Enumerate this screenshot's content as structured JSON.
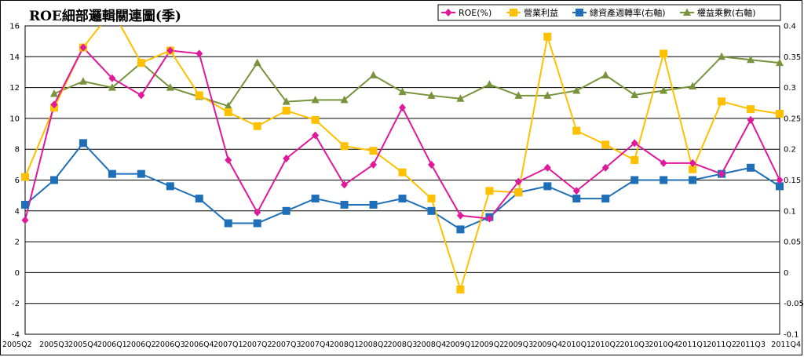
{
  "chart_data": {
    "type": "line",
    "title": "ROE細部邏輯關連圖(季)",
    "categories": [
      "2005Q2",
      "2005Q3",
      "2005Q4",
      "2006Q1",
      "2006Q2",
      "2006Q3",
      "2006Q4",
      "2007Q1",
      "2007Q2",
      "2007Q3",
      "2007Q4",
      "2008Q1",
      "2008Q2",
      "2008Q3",
      "2008Q4",
      "2009Q1",
      "2009Q2",
      "2009Q3",
      "2009Q4",
      "2010Q1",
      "2010Q2",
      "2010Q3",
      "2010Q4",
      "2011Q1",
      "2011Q2",
      "2011Q3",
      "2011Q4"
    ],
    "y_left": {
      "min": -4,
      "max": 16,
      "step": 2,
      "ticks": [
        "-4",
        "-2",
        "0",
        "2",
        "4",
        "6",
        "8",
        "10",
        "12",
        "14",
        "16"
      ]
    },
    "y_right": {
      "min": -0.1,
      "max": 0.4,
      "step": 0.05,
      "ticks": [
        "-0.1",
        "-0.05",
        "0",
        "0.05",
        "0.1",
        "0.15",
        "0.2",
        "0.25",
        "0.3",
        "0.35",
        "0.4"
      ]
    },
    "grid": true,
    "legend_position": "top-right",
    "series": [
      {
        "name": "ROE(%)",
        "axis": "left",
        "marker": "diamond",
        "color": "#e0189a",
        "values": [
          3.4,
          10.9,
          14.6,
          12.6,
          11.5,
          14.4,
          14.2,
          7.3,
          3.9,
          7.4,
          8.9,
          5.7,
          7.0,
          10.7,
          7.0,
          3.7,
          3.5,
          5.9,
          6.8,
          5.3,
          6.8,
          8.4,
          7.1,
          7.1,
          6.4,
          9.9,
          6.0
        ]
      },
      {
        "name": "營業利益",
        "axis": "left",
        "marker": "square",
        "color": "#ffc000",
        "values": [
          6.2,
          10.7,
          14.6,
          17.0,
          13.6,
          14.4,
          11.5,
          10.4,
          9.5,
          10.5,
          9.9,
          8.2,
          7.9,
          6.5,
          4.8,
          -1.1,
          5.3,
          5.2,
          15.3,
          9.2,
          8.3,
          7.3,
          14.2,
          6.7,
          11.1,
          10.6,
          10.3
        ]
      },
      {
        "name": "總資產週轉率(右軸)",
        "axis": "right",
        "marker": "square",
        "color": "#1f6fb8",
        "values": [
          0.11,
          0.15,
          0.21,
          0.16,
          0.16,
          0.14,
          0.12,
          0.08,
          0.08,
          0.1,
          0.12,
          0.11,
          0.11,
          0.12,
          0.1,
          0.07,
          0.09,
          0.13,
          0.14,
          0.12,
          0.12,
          0.15,
          0.15,
          0.15,
          0.16,
          0.17,
          0.14
        ]
      },
      {
        "name": "權益乘數(右軸)",
        "axis": "right",
        "marker": "triangle",
        "color": "#77933c",
        "values": [
          null,
          0.29,
          0.31,
          0.3,
          0.34,
          0.3,
          0.285,
          0.27,
          0.34,
          0.277,
          0.28,
          0.28,
          0.32,
          0.293,
          0.287,
          0.282,
          0.305,
          0.287,
          0.287,
          0.295,
          0.32,
          0.288,
          0.295,
          0.302,
          0.35,
          0.345,
          0.34
        ]
      }
    ]
  }
}
